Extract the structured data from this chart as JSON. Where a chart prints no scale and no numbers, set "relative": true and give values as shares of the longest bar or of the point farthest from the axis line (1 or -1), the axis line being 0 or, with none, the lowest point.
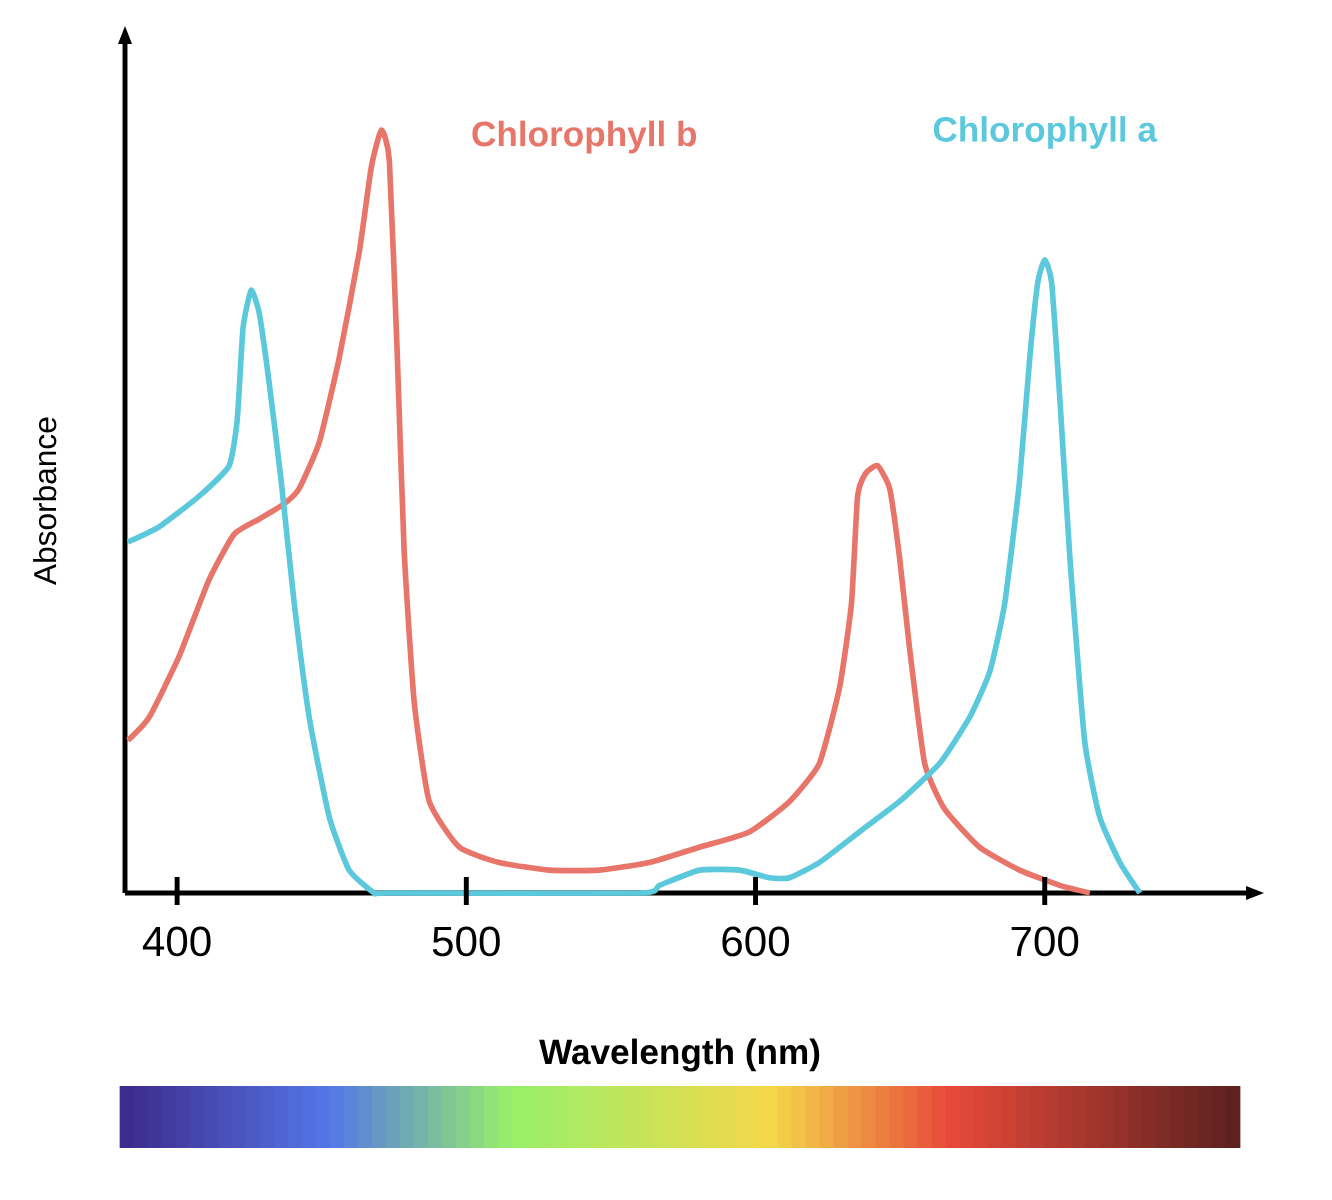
{
  "chart_data": {
    "type": "line",
    "xlabel": "Wavelength (nm)",
    "ylabel": "Absorbance",
    "relative": true,
    "xlim": [
      382,
      771
    ],
    "xticks": [
      400,
      500,
      600,
      700
    ],
    "tick_labels": "x",
    "grid": false,
    "legend": false,
    "marker": "none",
    "line_style": "solid",
    "series": [
      {
        "name": "Chlorophyll b",
        "color": "#e8756a",
        "x": [
          383,
          390.3,
          400.7,
          411,
          419.7,
          428.4,
          437,
          442.2,
          449.1,
          456,
          463,
          467.1,
          470.6,
          473.4,
          476.1,
          478.5,
          482,
          487.2,
          497.6,
          511.4,
          528.7,
          546,
          563.3,
          580.6,
          597.9,
          611.8,
          622.1,
          629.1,
          633.2,
          635.3,
          638.1,
          642.2,
          646.4,
          649.8,
          653.3,
          658.5,
          665.4,
          677.5,
          691.3,
          705.2,
          715.6
        ],
        "values": [
          0.2,
          0.23,
          0.31,
          0.41,
          0.47,
          0.49,
          0.51,
          0.53,
          0.59,
          0.7,
          0.84,
          0.95,
          1,
          0.96,
          0.71,
          0.45,
          0.25,
          0.12,
          0.06,
          0.04,
          0.03,
          0.03,
          0.04,
          0.06,
          0.08,
          0.12,
          0.17,
          0.27,
          0.38,
          0.52,
          0.55,
          0.56,
          0.53,
          0.44,
          0.32,
          0.17,
          0.11,
          0.06,
          0.03,
          0.01,
          0
        ]
      },
      {
        "name": "Chlorophyll a",
        "color": "#5bc8dc",
        "x": [
          383,
          393.8,
          407.6,
          418,
          420.8,
          422.8,
          425.6,
          428.4,
          431.8,
          436,
          440.5,
          445.7,
          452.6,
          459.5,
          468.2,
          473.4,
          559.9,
          566.8,
          580.6,
          594.5,
          604.8,
          611.8,
          622.1,
          635.9,
          649.8,
          663.7,
          674,
          681,
          686.2,
          691.3,
          694.8,
          697.6,
          700,
          702.4,
          705.2,
          708.7,
          713.8,
          719,
          726,
          732.9
        ],
        "values": [
          0.46,
          0.48,
          0.52,
          0.56,
          0.62,
          0.74,
          0.79,
          0.76,
          0.67,
          0.54,
          0.38,
          0.23,
          0.1,
          0.03,
          0,
          0,
          0,
          0.01,
          0.03,
          0.03,
          0.02,
          0.02,
          0.04,
          0.08,
          0.12,
          0.17,
          0.23,
          0.29,
          0.38,
          0.54,
          0.7,
          0.8,
          0.83,
          0.8,
          0.65,
          0.44,
          0.2,
          0.1,
          0.04,
          0
        ]
      }
    ]
  }
}
